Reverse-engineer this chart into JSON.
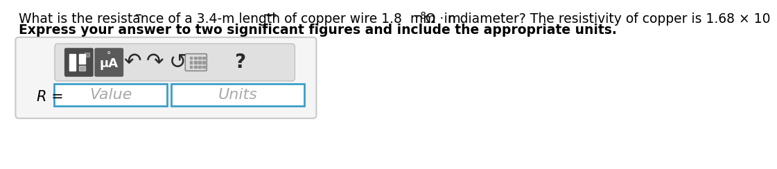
{
  "line1_part1": "What is the resistance of a 3.4-m length of copper wire 1.8  mm  in diameter? The resistivity of copper is 1.68 × 10",
  "line1_exp": "−8",
  "line1_part2": " Ω · m.",
  "line2": "Express your answer to two significant figures and include the appropriate units.",
  "r_label": "R =",
  "value_placeholder": "Value",
  "units_placeholder": "Units",
  "bg_color": "#ffffff",
  "outer_box_edge": "#c8c8c8",
  "outer_box_fill": "#f5f5f5",
  "toolbar_fill": "#e0e0e0",
  "toolbar_edge": "#c0c0c0",
  "icon_dark": "#5a5a5a",
  "icon_darker": "#3d3d3d",
  "input_border": "#3a9fca",
  "input_fill": "#ffffff",
  "placeholder_color": "#aaaaaa",
  "fs_question": 13.5,
  "fs_bold": 13.5,
  "fs_label": 15,
  "fs_placeholder": 16
}
